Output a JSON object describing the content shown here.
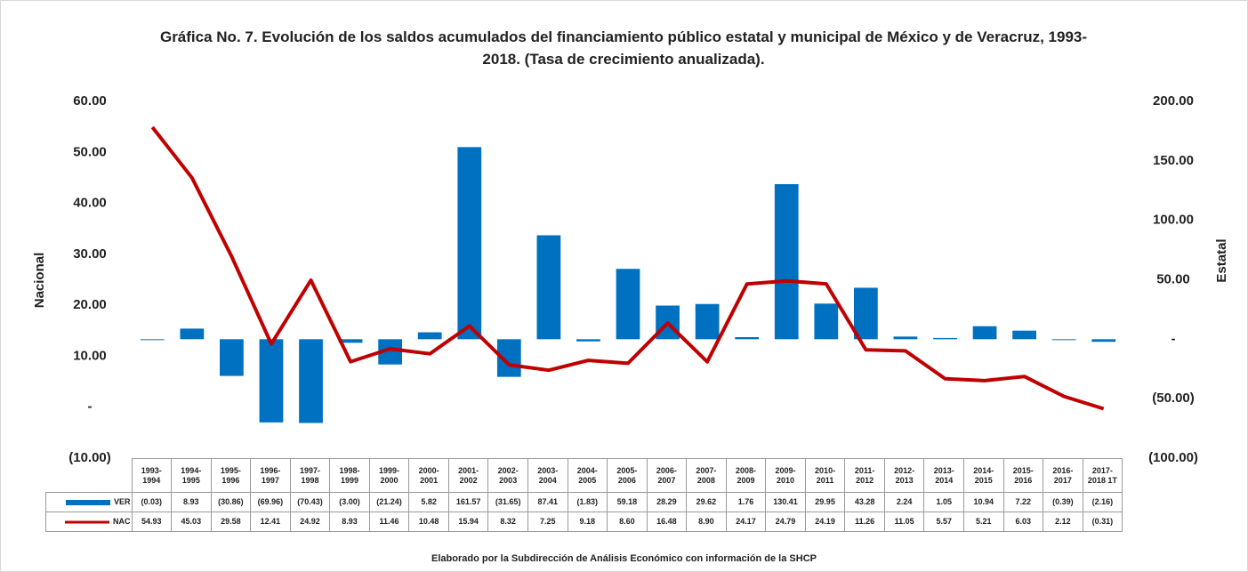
{
  "chart_data": {
    "type": "bar_line",
    "title": "Gráfica No. 7. Evolución de los saldos acumulados del financiamiento público estatal y municipal de México y de Veracruz, 1993-2018. (Tasa de crecimiento anualizada).",
    "y_label": "Nacional",
    "y2_label": "Estatal",
    "footnote": "Elaborado por la Subdirección de Análisis Económico con información de la SHCP",
    "categories": [
      "1993-1994",
      "1994-1995",
      "1995-1996",
      "1996-1997",
      "1997-1998",
      "1998-1999",
      "1999-2000",
      "2000-2001",
      "2001-2002",
      "2002-2003",
      "2003-2004",
      "2004-2005",
      "2005-2006",
      "2006-2007",
      "2007-2008",
      "2008-2009",
      "2009-2010",
      "2010-2011",
      "2011-2012",
      "2012-2013",
      "2013-2014",
      "2014-2015",
      "2015-2016",
      "2016-2017",
      "2017-2018 1T"
    ],
    "series": [
      {
        "name": "VER",
        "type": "bar",
        "axis": "y2",
        "color": "#0070c0",
        "values": [
          -0.03,
          8.93,
          -30.86,
          -69.96,
          -70.43,
          -3.0,
          -21.24,
          5.82,
          161.57,
          -31.65,
          87.41,
          -1.83,
          59.18,
          28.29,
          29.62,
          1.76,
          130.41,
          29.95,
          43.28,
          2.24,
          1.05,
          10.94,
          7.22,
          -0.39,
          -2.16
        ],
        "value_labels": [
          "(0.03)",
          "8.93",
          "(30.86)",
          "(69.96)",
          "(70.43)",
          "(3.00)",
          "(21.24)",
          "5.82",
          "161.57",
          "(31.65)",
          "87.41",
          "(1.83)",
          "59.18",
          "28.29",
          "29.62",
          "1.76",
          "130.41",
          "29.95",
          "43.28",
          "2.24",
          "1.05",
          "10.94",
          "7.22",
          "(0.39)",
          "(2.16)"
        ]
      },
      {
        "name": "NAC",
        "type": "line",
        "axis": "y",
        "color": "#c00000",
        "values": [
          54.93,
          45.03,
          29.58,
          12.41,
          24.92,
          8.93,
          11.46,
          10.48,
          15.94,
          8.32,
          7.25,
          9.18,
          8.6,
          16.48,
          8.9,
          24.17,
          24.79,
          24.19,
          11.26,
          11.05,
          5.57,
          5.21,
          6.03,
          2.12,
          -0.31
        ],
        "value_labels": [
          "54.93",
          "45.03",
          "29.58",
          "12.41",
          "24.92",
          "8.93",
          "11.46",
          "10.48",
          "15.94",
          "8.32",
          "7.25",
          "9.18",
          "8.60",
          "16.48",
          "8.90",
          "24.17",
          "24.79",
          "24.19",
          "11.26",
          "11.05",
          "5.57",
          "5.21",
          "6.03",
          "2.12",
          "(0.31)"
        ]
      }
    ],
    "ylim": [
      -10,
      60
    ],
    "yticks": [
      {
        "value": -10,
        "label": "(10.00)"
      },
      {
        "value": 0,
        "label": "-"
      },
      {
        "value": 10,
        "label": "10.00"
      },
      {
        "value": 20,
        "label": "20.00"
      },
      {
        "value": 30,
        "label": "30.00"
      },
      {
        "value": 40,
        "label": "40.00"
      },
      {
        "value": 50,
        "label": "50.00"
      },
      {
        "value": 60,
        "label": "60.00"
      }
    ],
    "y2lim": [
      -100,
      200
    ],
    "y2ticks": [
      {
        "value": -100,
        "label": "(100.00)"
      },
      {
        "value": -50,
        "label": "(50.00)"
      },
      {
        "value": 0,
        "label": "-"
      },
      {
        "value": 50,
        "label": "50.00"
      },
      {
        "value": 100,
        "label": "100.00"
      },
      {
        "value": 150,
        "label": "150.00"
      },
      {
        "value": 200,
        "label": "200.00"
      }
    ],
    "grid": false
  }
}
